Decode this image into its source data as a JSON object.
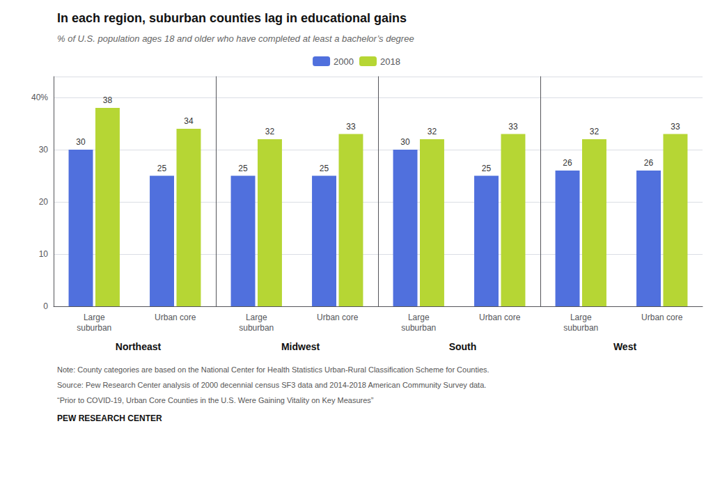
{
  "title": "In each region, suburban counties lag in educational gains",
  "subtitle": "% of U.S. population ages 18 and older who have completed at least a bachelor’s degree",
  "annotations": [
    "Note: County categories are based on the National Center for Health Statistics Urban-Rural Classification Scheme for Counties.",
    "Source: Pew Research Center analysis of 2000 decennial census SF3 data and 2014-2018 American Community Survey data.",
    "“Prior to COVID-19, Urban Core Counties in the U.S. Were Gaining Vitality on Key Measures”",
    "PEW RESEARCH CENTER"
  ],
  "chart_data": [
    {
      "type": "bar",
      "title": "Northeast",
      "categories": [
        "Large\nsuburban",
        "Urban core"
      ],
      "series": [
        {
          "name": "2000",
          "values": [
            30,
            25
          ]
        },
        {
          "name": "2018",
          "values": [
            38,
            34
          ]
        }
      ],
      "ylim": [
        0,
        44
      ],
      "yticks": [
        0,
        10,
        20,
        30,
        {
          "value": 40,
          "label": "40%"
        }
      ],
      "grid": true,
      "data_labels": true,
      "legend": "top"
    },
    {
      "type": "bar",
      "title": "Midwest",
      "categories": [
        "Large\nsuburban",
        "Urban core"
      ],
      "series": [
        {
          "name": "2000",
          "values": [
            25,
            25
          ]
        },
        {
          "name": "2018",
          "values": [
            32,
            33
          ]
        }
      ],
      "ylim": [
        0,
        44
      ],
      "yticks": [
        0,
        10,
        20,
        30,
        {
          "value": 40,
          "label": "40%"
        }
      ],
      "grid": true,
      "data_labels": true,
      "tick_labels": "x"
    },
    {
      "type": "bar",
      "title": "South",
      "categories": [
        "Large\nsuburban",
        "Urban core"
      ],
      "series": [
        {
          "name": "2000",
          "values": [
            30,
            25
          ]
        },
        {
          "name": "2018",
          "values": [
            32,
            33
          ]
        }
      ],
      "ylim": [
        0,
        44
      ],
      "yticks": [
        0,
        10,
        20,
        30,
        {
          "value": 40,
          "label": "40%"
        }
      ],
      "grid": true,
      "data_labels": true,
      "tick_labels": "x"
    },
    {
      "type": "bar",
      "title": "West",
      "categories": [
        "Large\nsuburban",
        "Urban core"
      ],
      "series": [
        {
          "name": "2000",
          "values": [
            26,
            26
          ]
        },
        {
          "name": "2018",
          "values": [
            32,
            33
          ]
        }
      ],
      "ylim": [
        0,
        44
      ],
      "yticks": [
        0,
        10,
        20,
        30,
        {
          "value": 40,
          "label": "40%"
        }
      ],
      "grid": true,
      "data_labels": true,
      "tick_labels": "x"
    }
  ]
}
